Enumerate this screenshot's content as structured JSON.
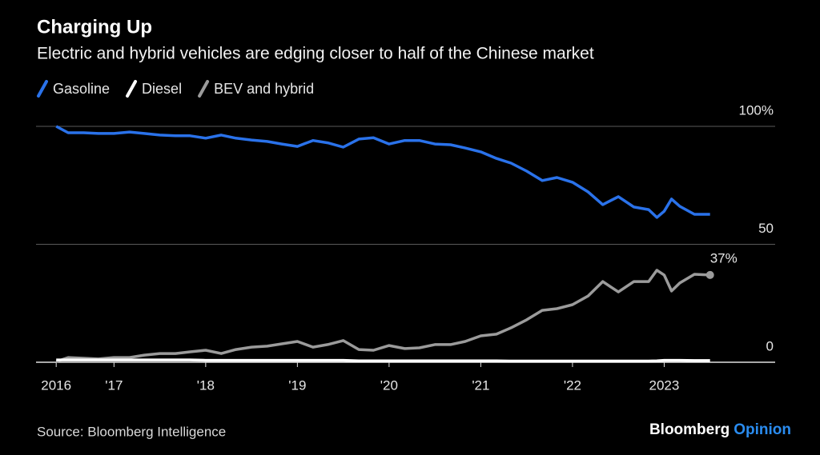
{
  "chart_data": {
    "type": "line",
    "title": "Charging Up",
    "subtitle": "Electric and hybrid vehicles are edging closer to half of the Chinese market",
    "source": "Source: Bloomberg Intelligence",
    "branding": {
      "name": "Bloomberg",
      "suffix": "Opinion"
    },
    "x": [
      2016.37,
      2016.5,
      2016.67,
      2016.83,
      2017,
      2017.17,
      2017.33,
      2017.5,
      2017.67,
      2017.83,
      2018,
      2018.17,
      2018.33,
      2018.5,
      2018.67,
      2018.83,
      2019,
      2019.17,
      2019.33,
      2019.5,
      2019.67,
      2019.83,
      2020,
      2020.17,
      2020.33,
      2020.5,
      2020.67,
      2020.83,
      2021,
      2021.17,
      2021.33,
      2021.5,
      2021.67,
      2021.83,
      2022,
      2022.17,
      2022.33,
      2022.5,
      2022.67,
      2022.83,
      2022.92,
      2023,
      2023.08,
      2023.17,
      2023.33,
      2023.5
    ],
    "series": [
      {
        "name": "Gasoline",
        "color": "#2a72ea",
        "values": [
          100,
          97.3,
          97.3,
          97,
          97,
          97.6,
          97,
          96.3,
          96,
          96,
          95,
          96.3,
          95,
          94.2,
          93.6,
          92.5,
          91.5,
          94,
          93,
          91.2,
          94.6,
          95.2,
          92.5,
          94,
          94,
          92.5,
          92.2,
          90.8,
          89.2,
          86.4,
          84.4,
          81,
          77,
          78.3,
          76.3,
          72.2,
          66.8,
          70.2,
          65.8,
          64.7,
          61.4,
          64,
          69.2,
          66.1,
          62.7,
          62.7
        ]
      },
      {
        "name": "Diesel",
        "color": "#ffffff",
        "values": [
          1,
          1,
          1,
          1,
          1,
          1,
          1,
          1,
          1,
          1,
          0.8,
          0.8,
          0.8,
          0.8,
          0.8,
          0.8,
          0.8,
          0.8,
          0.8,
          0.8,
          0.6,
          0.6,
          0.6,
          0.6,
          0.6,
          0.6,
          0.6,
          0.6,
          0.6,
          0.6,
          0.5,
          0.5,
          0.5,
          0.5,
          0.5,
          0.5,
          0.5,
          0.5,
          0.5,
          0.5,
          0.6,
          0.8,
          0.8,
          0.8,
          0.7,
          0.7
        ]
      },
      {
        "name": "BEV and hybrid",
        "color": "#9b9b9b",
        "end_label": "37%",
        "values": [
          0.3,
          2,
          1.7,
          1.4,
          2,
          2,
          3,
          3.7,
          3.7,
          4.4,
          5.1,
          3.7,
          5.4,
          6.4,
          6.8,
          7.8,
          8.8,
          6.4,
          7.5,
          9.2,
          5.4,
          5.1,
          7.1,
          5.8,
          6.1,
          7.5,
          7.5,
          8.8,
          11.2,
          11.9,
          14.6,
          18,
          22,
          22.7,
          24.4,
          28.1,
          34.2,
          29.8,
          34.2,
          34.2,
          39,
          37,
          30.2,
          33.6,
          37.3,
          37
        ]
      }
    ],
    "xlim": [
      2016.15,
      2024.21
    ],
    "xticks": [
      {
        "value": 2016.37,
        "label": "2016"
      },
      {
        "value": 2017,
        "label": "'17"
      },
      {
        "value": 2018,
        "label": "'18"
      },
      {
        "value": 2019,
        "label": "'19"
      },
      {
        "value": 2020,
        "label": "'20"
      },
      {
        "value": 2021,
        "label": "'21"
      },
      {
        "value": 2022,
        "label": "'22"
      },
      {
        "value": 2023,
        "label": "2023"
      }
    ],
    "ylim": [
      0,
      100
    ],
    "yticks": [
      0,
      50,
      {
        "value": 100,
        "label": "100%"
      }
    ],
    "grid": true
  }
}
